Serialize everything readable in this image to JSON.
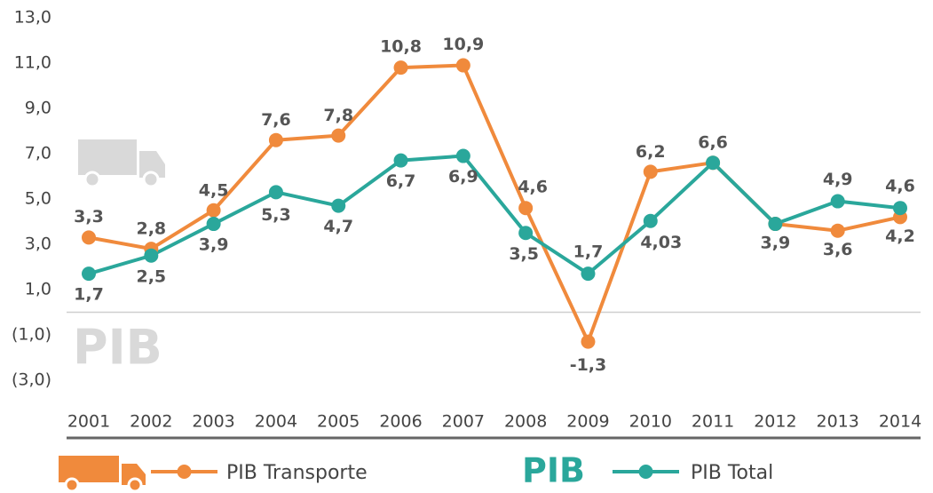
{
  "chart_data": {
    "type": "line",
    "categories": [
      "2001",
      "2002",
      "2003",
      "2004",
      "2005",
      "2006",
      "2007",
      "2008",
      "2009",
      "2010",
      "2011",
      "2012",
      "2013",
      "2014"
    ],
    "series": [
      {
        "name": "PIB Transporte",
        "color": "#f08a3c",
        "values": [
          3.3,
          2.8,
          4.5,
          7.6,
          7.8,
          10.8,
          10.9,
          4.6,
          -1.3,
          6.2,
          6.6,
          3.9,
          3.6,
          4.2
        ],
        "value_labels": [
          "3,3",
          "2,8",
          "4,5",
          "7,6",
          "7,8",
          "10,8",
          "10,9",
          "4,6",
          "-1,3",
          "6,2",
          "6,6",
          "3,9",
          "3,6",
          "4,2"
        ]
      },
      {
        "name": "PIB Total",
        "color": "#2aa79b",
        "values": [
          1.7,
          2.5,
          3.9,
          5.3,
          4.7,
          6.7,
          6.9,
          3.5,
          1.7,
          4.03,
          6.6,
          3.9,
          4.9,
          4.6
        ],
        "value_labels": [
          "1,7",
          "2,5",
          "3,9",
          "5,3",
          "4,7",
          "6,7",
          "6,9",
          "3,5",
          "1,7",
          "4,03",
          null,
          null,
          "4,9",
          "4,6"
        ]
      }
    ],
    "ylim": [
      -3,
      13
    ],
    "yticks": [
      {
        "value": -3,
        "label": "(3,0)"
      },
      {
        "value": -1,
        "label": "(1,0)"
      },
      {
        "value": 1,
        "label": "1,0"
      },
      {
        "value": 3,
        "label": "3,0"
      },
      {
        "value": 5,
        "label": "5,0"
      },
      {
        "value": 7,
        "label": "7,0"
      },
      {
        "value": 9,
        "label": "9,0"
      },
      {
        "value": 11,
        "label": "11,0"
      },
      {
        "value": 13,
        "label": "13,0"
      }
    ],
    "watermark_text": "PIB",
    "legend_icon_text": "PIB"
  }
}
